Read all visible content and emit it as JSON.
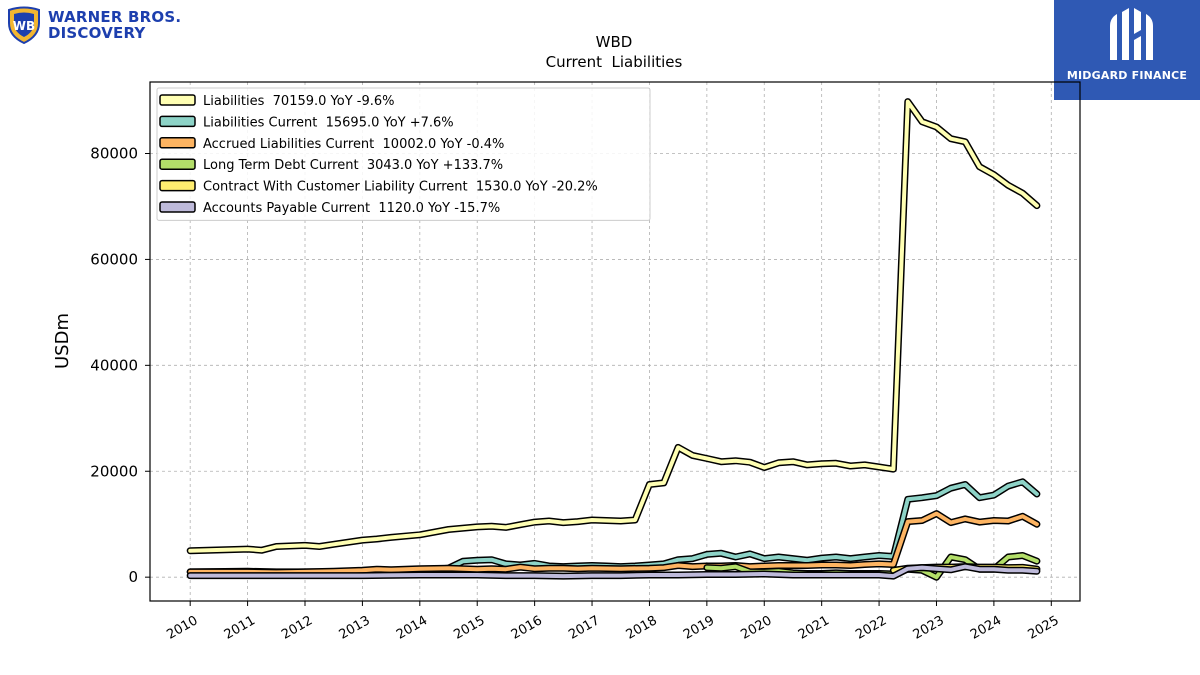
{
  "company_logo": {
    "line1": "WARNER BROS.",
    "line2": "DISCOVERY",
    "badge": "WB"
  },
  "brand_logo": {
    "name": "MIDGARD FINANCE"
  },
  "chart_data": {
    "type": "line",
    "title": "WBD",
    "subtitle": "Current  Liabilities",
    "xlabel": "",
    "ylabel": "USDm",
    "xlim": [
      2009.3,
      2025.5
    ],
    "ylim": [
      -4500,
      93500
    ],
    "xticks": [
      "2010",
      "2011",
      "2012",
      "2013",
      "2014",
      "2015",
      "2016",
      "2017",
      "2018",
      "2019",
      "2020",
      "2021",
      "2022",
      "2023",
      "2024",
      "2025"
    ],
    "yticks": [
      "0",
      "20000",
      "40000",
      "60000",
      "80000"
    ],
    "grid": true,
    "legend_position": "top-left",
    "series": [
      {
        "name": "Liabilities  70159.0 YoY -9.6%",
        "color": "#ffffb3",
        "x": [
          2010.0,
          2011.0,
          2011.25,
          2011.5,
          2012.0,
          2012.25,
          2012.5,
          2013.0,
          2013.25,
          2013.5,
          2014.0,
          2014.5,
          2015.0,
          2015.25,
          2015.5,
          2015.75,
          2016.0,
          2016.25,
          2016.5,
          2016.75,
          2017.0,
          2017.25,
          2017.5,
          2017.75,
          2018.0,
          2018.25,
          2018.5,
          2018.75,
          2019.0,
          2019.25,
          2019.5,
          2019.75,
          2020.0,
          2020.25,
          2020.5,
          2020.75,
          2021.0,
          2021.25,
          2021.5,
          2021.75,
          2022.0,
          2022.25,
          2022.5,
          2022.75,
          2023.0,
          2023.25,
          2023.5,
          2023.75,
          2024.0,
          2024.25,
          2024.5,
          2024.75
        ],
        "y": [
          5000,
          5300,
          5100,
          5800,
          6000,
          5800,
          6200,
          7000,
          7200,
          7500,
          8000,
          9000,
          9500,
          9600,
          9400,
          9900,
          10400,
          10600,
          10300,
          10500,
          10800,
          10700,
          10600,
          10800,
          17500,
          17800,
          24500,
          23000,
          22400,
          21800,
          22000,
          21700,
          20700,
          21600,
          21800,
          21200,
          21400,
          21500,
          21000,
          21200,
          20800,
          20400,
          89800,
          86000,
          85000,
          82800,
          82200,
          77500,
          76000,
          74000,
          72500,
          70159
        ]
      },
      {
        "name": "Liabilities Current  15695.0 YoY +7.6%",
        "color": "#8dd3c7",
        "x": [
          2010.0,
          2011.0,
          2011.5,
          2012.0,
          2012.5,
          2013.0,
          2013.5,
          2014.0,
          2014.25,
          2014.5,
          2014.75,
          2015.0,
          2015.25,
          2015.5,
          2015.75,
          2016.0,
          2016.25,
          2016.5,
          2016.75,
          2017.0,
          2017.25,
          2017.5,
          2017.75,
          2018.0,
          2018.25,
          2018.5,
          2018.75,
          2019.0,
          2019.25,
          2019.5,
          2019.75,
          2020.0,
          2020.25,
          2020.5,
          2020.75,
          2021.0,
          2021.25,
          2021.5,
          2021.75,
          2022.0,
          2022.25,
          2022.5,
          2022.75,
          2023.0,
          2023.25,
          2023.5,
          2023.75,
          2024.0,
          2024.25,
          2024.5,
          2024.75
        ],
        "y": [
          1000,
          1100,
          1000,
          1000,
          1000,
          1100,
          1200,
          1200,
          1500,
          1700,
          3000,
          3200,
          3300,
          2500,
          2300,
          2600,
          2100,
          2000,
          2100,
          2200,
          2100,
          2000,
          2100,
          2300,
          2500,
          3300,
          3500,
          4300,
          4500,
          3800,
          4400,
          3500,
          3800,
          3500,
          3200,
          3600,
          3800,
          3500,
          3800,
          4100,
          3900,
          14700,
          15000,
          15400,
          16800,
          17500,
          15000,
          15500,
          17200,
          18000,
          15695
        ]
      },
      {
        "name": "Accrued Liabilities Current  10002.0 YoY -0.4%",
        "color": "#fdb462",
        "x": [
          2010.0,
          2011.0,
          2011.5,
          2012.0,
          2012.5,
          2013.0,
          2013.25,
          2013.5,
          2014.0,
          2014.5,
          2015.0,
          2015.25,
          2015.5,
          2015.75,
          2016.0,
          2016.25,
          2016.5,
          2016.75,
          2017.0,
          2017.5,
          2018.0,
          2018.25,
          2018.5,
          2018.75,
          2019.0,
          2019.25,
          2019.5,
          2019.75,
          2020.0,
          2020.25,
          2020.5,
          2020.75,
          2021.0,
          2021.25,
          2021.5,
          2021.75,
          2022.0,
          2022.25,
          2022.5,
          2022.75,
          2023.0,
          2023.25,
          2023.5,
          2023.75,
          2024.0,
          2024.25,
          2024.5,
          2024.75
        ],
        "y": [
          1000,
          1000,
          900,
          1000,
          1100,
          1300,
          1500,
          1400,
          1600,
          1700,
          1500,
          1600,
          1500,
          1900,
          1600,
          1700,
          1700,
          1600,
          1700,
          1600,
          1700,
          1800,
          2200,
          2000,
          2100,
          2100,
          2200,
          2000,
          2100,
          2200,
          2200,
          2200,
          2300,
          2300,
          2200,
          2400,
          2500,
          2400,
          10500,
          10700,
          12000,
          10300,
          11000,
          10400,
          10700,
          10600,
          11500,
          10002
        ]
      },
      {
        "name": "Long Term Debt Current  3043.0 YoY +133.7%",
        "color": "#b3de69",
        "x": [
          2019.0,
          2019.25,
          2019.5,
          2019.75,
          2020.0,
          2020.25,
          2020.5,
          2020.75,
          2021.0,
          2021.25,
          2021.5,
          2021.75,
          2022.0,
          2022.25,
          2022.5,
          2022.75,
          2023.0,
          2023.25,
          2023.5,
          2023.75,
          2024.0,
          2024.25,
          2024.5,
          2024.75
        ],
        "y": [
          1800,
          1700,
          2000,
          1000,
          1000,
          1100,
          800,
          700,
          700,
          800,
          700,
          700,
          700,
          600,
          1500,
          1300,
          0,
          3800,
          3300,
          1500,
          1500,
          3800,
          4100,
          3043
        ]
      },
      {
        "name": "Contract With Customer Liability Current  1530.0 YoY -20.2%",
        "color": "#ffed6f",
        "x": [
          2022.25,
          2022.5,
          2022.75,
          2023.0,
          2023.25,
          2023.5,
          2023.75,
          2024.0,
          2024.25,
          2024.5,
          2024.75
        ],
        "y": [
          1300,
          1700,
          1800,
          1900,
          1900,
          2000,
          1900,
          1900,
          1800,
          1850,
          1530
        ]
      },
      {
        "name": "Accounts Payable Current  1120.0 YoY -15.7%",
        "color": "#bebada",
        "x": [
          2010.0,
          2011.0,
          2012.0,
          2013.0,
          2014.0,
          2015.0,
          2015.5,
          2016.0,
          2016.5,
          2017.0,
          2017.5,
          2018.0,
          2018.5,
          2019.0,
          2019.5,
          2020.0,
          2020.5,
          2021.0,
          2021.5,
          2022.0,
          2022.25,
          2022.5,
          2022.75,
          2023.0,
          2023.25,
          2023.5,
          2023.75,
          2024.0,
          2024.25,
          2024.5,
          2024.75
        ],
        "y": [
          300,
          300,
          300,
          300,
          400,
          400,
          300,
          300,
          200,
          300,
          300,
          400,
          400,
          500,
          500,
          600,
          400,
          400,
          400,
          400,
          200,
          1600,
          1800,
          1600,
          1400,
          2000,
          1500,
          1500,
          1300,
          1300,
          1120
        ]
      }
    ]
  }
}
